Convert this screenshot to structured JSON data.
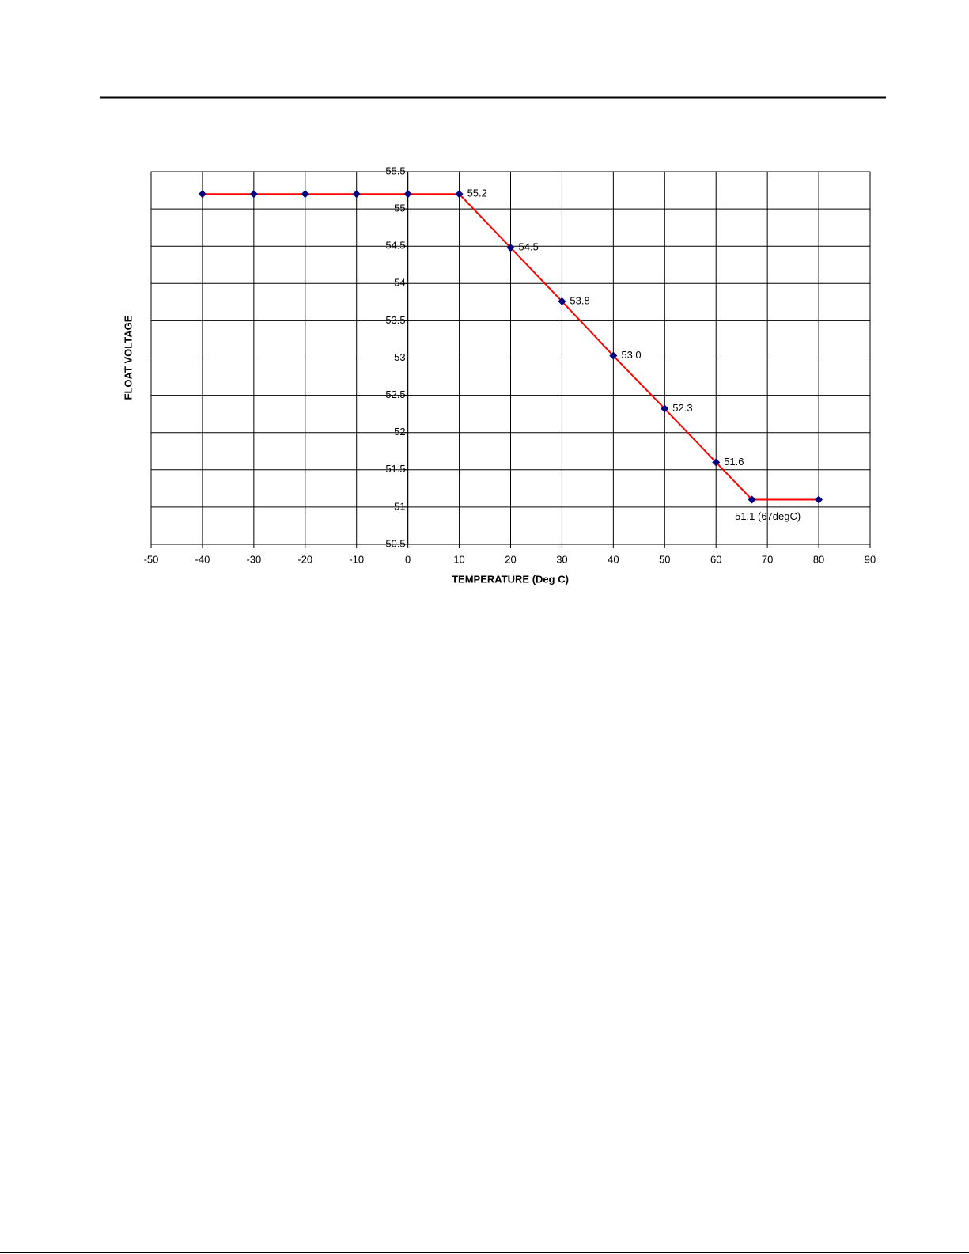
{
  "chart_data": {
    "type": "line",
    "x_label": "TEMPERATURE (Deg C)",
    "y_label": "FLOAT VOLTAGE",
    "x": [
      -40,
      -30,
      -20,
      -10,
      0,
      10,
      20,
      30,
      40,
      50,
      60,
      67,
      80
    ],
    "series": [
      {
        "color": "#ff0000",
        "marker_color": "#000080",
        "values": [
          55.2,
          55.2,
          55.2,
          55.2,
          55.2,
          55.2,
          54.48,
          53.76,
          53.03,
          52.32,
          51.6,
          51.1,
          51.1
        ],
        "value_labels": [
          null,
          null,
          null,
          null,
          null,
          "55.2",
          "54.5",
          "53.8",
          "53.0",
          "52.3",
          "51.6",
          "51.1 (67degC)",
          null
        ]
      }
    ],
    "xlim": [
      -50,
      90
    ],
    "xticks": [
      -50,
      -40,
      -30,
      -20,
      -10,
      0,
      10,
      20,
      30,
      40,
      50,
      60,
      70,
      80,
      90
    ],
    "ylim": [
      50.5,
      55.5
    ],
    "yticks": [
      50.5,
      51,
      51.5,
      52,
      52.5,
      53,
      53.5,
      54,
      54.5,
      55,
      55.5
    ],
    "grid": true
  }
}
